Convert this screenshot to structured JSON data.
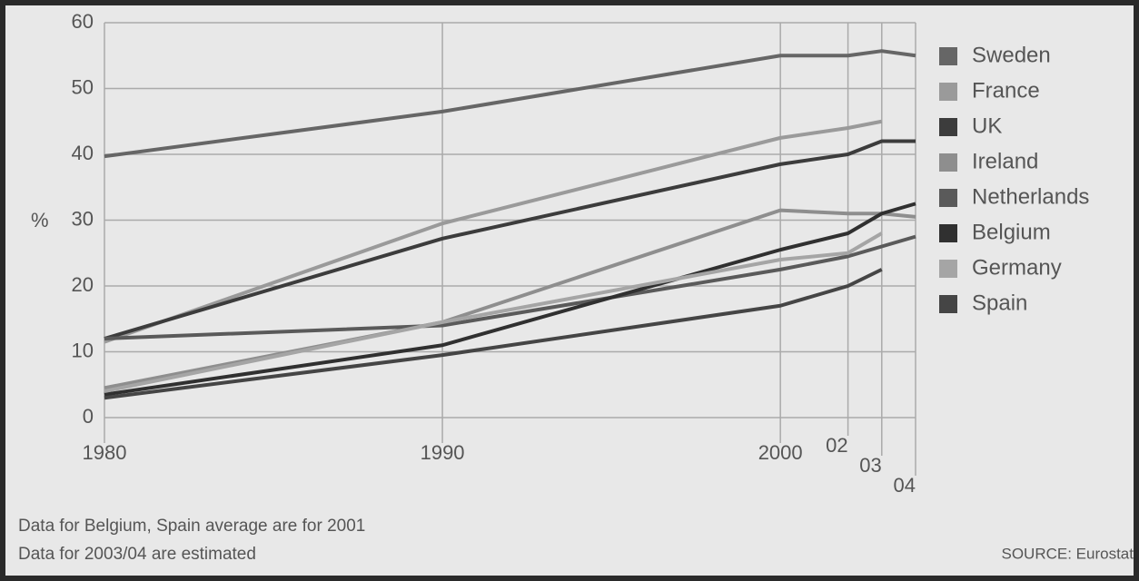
{
  "chart_data": {
    "type": "line",
    "x": [
      1980,
      1990,
      2000,
      2002,
      2003,
      2004
    ],
    "xlim": [
      1980,
      2004
    ],
    "xticks": [
      1980,
      1990,
      2000,
      {
        "value": 2002,
        "label": "02"
      },
      {
        "value": 2003,
        "label": "03"
      },
      {
        "value": 2004,
        "label": "04"
      }
    ],
    "ylim": [
      0,
      60
    ],
    "yticks": [
      0,
      10,
      20,
      30,
      40,
      50,
      60
    ],
    "y_label": "%",
    "grid": true,
    "legend": "right",
    "series": [
      {
        "name": "Sweden",
        "color": "#666666",
        "values": [
          39.7,
          46.5,
          55,
          55,
          55.7,
          55
        ]
      },
      {
        "name": "France",
        "color": "#9a9a9a",
        "values": [
          11.5,
          29.5,
          42.5,
          44,
          45,
          null
        ]
      },
      {
        "name": "UK",
        "color": "#3c3c3c",
        "values": [
          12,
          27.2,
          38.5,
          40,
          42,
          42
        ]
      },
      {
        "name": "Ireland",
        "color": "#8e8e8e",
        "values": [
          4.5,
          14.5,
          31.5,
          31,
          31,
          30.5
        ]
      },
      {
        "name": "Netherlands",
        "color": "#5a5a5a",
        "values": [
          12,
          14,
          22.5,
          24.5,
          26,
          27.5
        ]
      },
      {
        "name": "Belgium",
        "color": "#303030",
        "values": [
          3.5,
          11,
          25.5,
          28,
          31,
          32.5
        ]
      },
      {
        "name": "Germany",
        "color": "#a5a5a5",
        "values": [
          4,
          14.5,
          24,
          25,
          28,
          null
        ]
      },
      {
        "name": "Spain",
        "color": "#454545",
        "values": [
          3,
          9.5,
          17,
          20,
          22.5,
          null
        ]
      }
    ],
    "notes": [
      "Data for Belgium, Spain average are for 2001",
      "Data for 2003/04 are estimated"
    ],
    "source": "SOURCE: Eurostat"
  }
}
